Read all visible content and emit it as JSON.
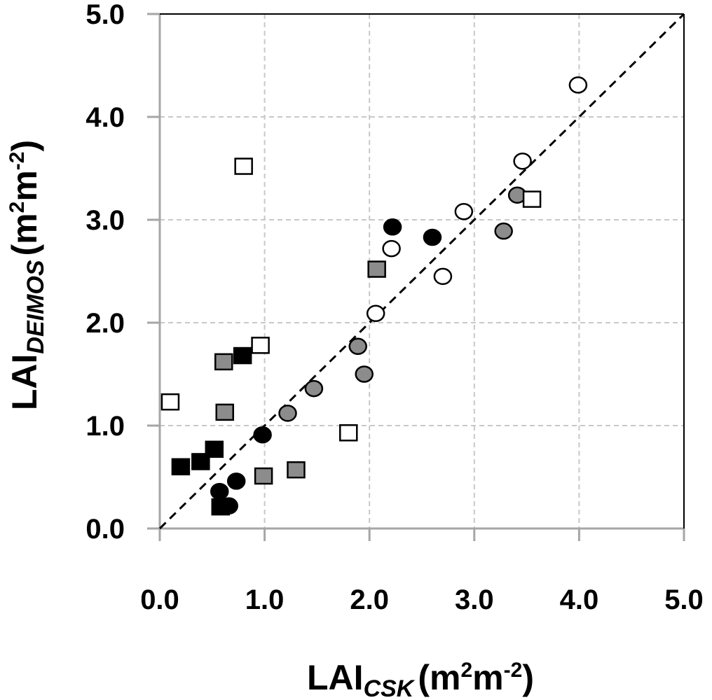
{
  "chart_data": {
    "type": "scatter",
    "title": "",
    "xlabel": {
      "main": "LAI",
      "sub": "CSK",
      "unit_open": "(m",
      "sup1": "2",
      "unit_mid": "m",
      "sup2": "-2",
      "unit_close": ")"
    },
    "ylabel": {
      "main": "LAI",
      "sub": "DEIMOS",
      "unit_open": "(m",
      "sup1": "2",
      "unit_mid": "m",
      "sup2": "-2",
      "unit_close": ")"
    },
    "xlim": [
      0,
      5
    ],
    "ylim": [
      0,
      5
    ],
    "x_ticks": [
      0,
      1,
      2,
      3,
      4,
      5
    ],
    "y_ticks": [
      0,
      1,
      2,
      3,
      4,
      5
    ],
    "x_tick_labels": [
      "0.0",
      "1.0",
      "2.0",
      "3.0",
      "4.0",
      "5.0"
    ],
    "y_tick_labels": [
      "0.0",
      "1.0",
      "2.0",
      "3.0",
      "4.0",
      "5.0"
    ],
    "grid": true,
    "reference_line": {
      "style": "dashed",
      "from": [
        0,
        0
      ],
      "to": [
        5,
        5
      ],
      "color": "#000000"
    },
    "colors": {
      "black": "#000000",
      "gray": "#8c8c8c",
      "white": "#ffffff",
      "grid": "#c8c8c8",
      "axis": "#a6a6a6"
    },
    "series": [
      {
        "name": "black circles",
        "marker": "circle",
        "fill": "black",
        "points": [
          [
            0.57,
            0.36
          ],
          [
            0.66,
            0.22
          ],
          [
            0.73,
            0.46
          ],
          [
            0.98,
            0.91
          ],
          [
            2.22,
            2.93
          ],
          [
            2.6,
            2.83
          ]
        ]
      },
      {
        "name": "gray circles",
        "marker": "circle",
        "fill": "gray",
        "points": [
          [
            1.22,
            1.12
          ],
          [
            1.47,
            1.36
          ],
          [
            1.89,
            1.77
          ],
          [
            1.95,
            1.5
          ],
          [
            3.28,
            2.89
          ],
          [
            3.41,
            3.24
          ]
        ]
      },
      {
        "name": "white circles",
        "marker": "circle",
        "fill": "white",
        "points": [
          [
            2.06,
            2.09
          ],
          [
            2.21,
            2.72
          ],
          [
            2.7,
            2.45
          ],
          [
            2.9,
            3.08
          ],
          [
            3.46,
            3.57
          ],
          [
            3.99,
            4.31
          ]
        ]
      },
      {
        "name": "black squares",
        "marker": "square",
        "fill": "black",
        "points": [
          [
            0.2,
            0.6
          ],
          [
            0.39,
            0.65
          ],
          [
            0.52,
            0.77
          ],
          [
            0.58,
            0.21
          ],
          [
            0.79,
            1.68
          ]
        ]
      },
      {
        "name": "gray squares",
        "marker": "square",
        "fill": "gray",
        "points": [
          [
            0.61,
            1.62
          ],
          [
            0.62,
            1.13
          ],
          [
            0.99,
            0.51
          ],
          [
            1.3,
            0.57
          ],
          [
            2.07,
            2.52
          ]
        ]
      },
      {
        "name": "white squares",
        "marker": "square",
        "fill": "white",
        "points": [
          [
            0.1,
            1.23
          ],
          [
            0.8,
            3.52
          ],
          [
            0.96,
            1.78
          ],
          [
            1.8,
            0.93
          ],
          [
            3.55,
            3.2
          ]
        ]
      }
    ]
  }
}
